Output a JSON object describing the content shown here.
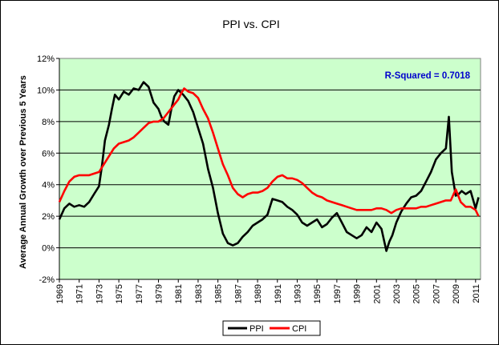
{
  "chart_data": {
    "type": "line",
    "title": "PPI vs. CPI",
    "ylabel": "Average Annual Growth over Previous 5 Years",
    "xlabel": "",
    "xlim": [
      1969,
      2011.5
    ],
    "ylim": [
      -2,
      12
    ],
    "yticks": [
      "-2%",
      "0%",
      "2%",
      "4%",
      "6%",
      "8%",
      "10%",
      "12%"
    ],
    "ytick_values": [
      -2,
      0,
      2,
      4,
      6,
      8,
      10,
      12
    ],
    "xticks": [
      "1969",
      "1971",
      "1973",
      "1975",
      "1977",
      "1979",
      "1981",
      "1983",
      "1985",
      "1987",
      "1989",
      "1991",
      "1993",
      "1995",
      "1997",
      "1999",
      "2001",
      "2003",
      "2005",
      "2007",
      "2009",
      "2011"
    ],
    "xtick_values": [
      1969,
      1971,
      1973,
      1975,
      1977,
      1979,
      1981,
      1983,
      1985,
      1987,
      1989,
      1991,
      1993,
      1995,
      1997,
      1999,
      2001,
      2003,
      2005,
      2007,
      2009,
      2011
    ],
    "annotation": "R-Squared = 0.7018",
    "grid": "horizontal",
    "legend": "bottom",
    "plot_background": "#ccffcc",
    "series": [
      {
        "name": "PPI",
        "color": "#000000",
        "x": [
          1969.0,
          1969.5,
          1970.0,
          1970.5,
          1971.0,
          1971.5,
          1972.0,
          1972.5,
          1973.0,
          1973.3,
          1973.6,
          1974.0,
          1974.3,
          1974.6,
          1975.0,
          1975.5,
          1976.0,
          1976.5,
          1977.0,
          1977.5,
          1978.0,
          1978.5,
          1979.0,
          1979.3,
          1979.6,
          1980.0,
          1980.3,
          1980.6,
          1981.0,
          1981.5,
          1982.0,
          1982.5,
          1983.0,
          1983.5,
          1984.0,
          1984.5,
          1985.0,
          1985.5,
          1986.0,
          1986.5,
          1987.0,
          1987.5,
          1988.0,
          1988.5,
          1989.0,
          1989.5,
          1990.0,
          1990.5,
          1991.0,
          1991.5,
          1992.0,
          1992.5,
          1993.0,
          1993.5,
          1994.0,
          1994.5,
          1995.0,
          1995.5,
          1996.0,
          1996.5,
          1997.0,
          1997.5,
          1998.0,
          1998.5,
          1999.0,
          1999.5,
          2000.0,
          2000.5,
          2001.0,
          2001.5,
          2002.0,
          2002.3,
          2002.6,
          2003.0,
          2003.5,
          2004.0,
          2004.5,
          2005.0,
          2005.5,
          2006.0,
          2006.5,
          2007.0,
          2007.5,
          2008.0,
          2008.3,
          2008.6,
          2009.0,
          2009.3,
          2009.6,
          2010.0,
          2010.5,
          2011.0,
          2011.3
        ],
        "values": [
          1.8,
          2.5,
          2.8,
          2.6,
          2.7,
          2.6,
          2.9,
          3.4,
          3.9,
          5.2,
          6.8,
          7.8,
          8.8,
          9.7,
          9.4,
          9.9,
          9.7,
          10.1,
          10.0,
          10.5,
          10.2,
          9.2,
          8.8,
          8.3,
          8.0,
          7.8,
          8.8,
          9.6,
          10.0,
          9.7,
          9.3,
          8.6,
          7.6,
          6.6,
          5.0,
          3.8,
          2.2,
          0.9,
          0.3,
          0.15,
          0.3,
          0.7,
          1.0,
          1.4,
          1.6,
          1.8,
          2.1,
          3.1,
          3.0,
          2.9,
          2.6,
          2.4,
          2.1,
          1.6,
          1.4,
          1.6,
          1.8,
          1.3,
          1.5,
          1.9,
          2.2,
          1.6,
          1.0,
          0.8,
          0.6,
          0.8,
          1.3,
          1.0,
          1.6,
          1.2,
          -0.2,
          0.4,
          0.8,
          1.6,
          2.3,
          2.8,
          3.2,
          3.3,
          3.6,
          4.2,
          4.8,
          5.6,
          6.0,
          6.3,
          8.3,
          4.8,
          3.3,
          3.4,
          3.6,
          3.4,
          3.6,
          2.5,
          3.2
        ]
      },
      {
        "name": "CPI",
        "color": "#ff0000",
        "x": [
          1969.0,
          1969.5,
          1970.0,
          1970.5,
          1971.0,
          1971.5,
          1972.0,
          1972.5,
          1973.0,
          1973.5,
          1974.0,
          1974.5,
          1975.0,
          1975.5,
          1976.0,
          1976.5,
          1977.0,
          1977.5,
          1978.0,
          1978.5,
          1979.0,
          1979.5,
          1980.0,
          1980.5,
          1981.0,
          1981.3,
          1981.6,
          1982.0,
          1982.5,
          1983.0,
          1983.5,
          1984.0,
          1984.5,
          1985.0,
          1985.5,
          1986.0,
          1986.5,
          1987.0,
          1987.5,
          1988.0,
          1988.5,
          1989.0,
          1989.5,
          1990.0,
          1990.5,
          1991.0,
          1991.5,
          1992.0,
          1992.5,
          1993.0,
          1993.5,
          1994.0,
          1994.5,
          1995.0,
          1995.5,
          1996.0,
          1996.5,
          1997.0,
          1997.5,
          1998.0,
          1998.5,
          1999.0,
          1999.5,
          2000.0,
          2000.5,
          2001.0,
          2001.5,
          2002.0,
          2002.5,
          2003.0,
          2003.5,
          2004.0,
          2004.5,
          2005.0,
          2005.5,
          2006.0,
          2006.5,
          2007.0,
          2007.5,
          2008.0,
          2008.5,
          2009.0,
          2009.5,
          2010.0,
          2010.5,
          2011.0,
          2011.3
        ],
        "values": [
          2.9,
          3.6,
          4.2,
          4.5,
          4.6,
          4.6,
          4.6,
          4.7,
          4.8,
          5.3,
          5.8,
          6.3,
          6.6,
          6.7,
          6.8,
          7.0,
          7.3,
          7.6,
          7.9,
          8.0,
          8.0,
          8.2,
          8.6,
          9.0,
          9.4,
          9.8,
          10.1,
          9.9,
          9.8,
          9.5,
          8.8,
          8.2,
          7.3,
          6.3,
          5.3,
          4.6,
          3.8,
          3.4,
          3.2,
          3.4,
          3.5,
          3.5,
          3.6,
          3.8,
          4.2,
          4.5,
          4.6,
          4.4,
          4.4,
          4.3,
          4.1,
          3.8,
          3.5,
          3.3,
          3.2,
          3.0,
          2.9,
          2.8,
          2.7,
          2.6,
          2.5,
          2.4,
          2.4,
          2.4,
          2.4,
          2.5,
          2.5,
          2.4,
          2.2,
          2.4,
          2.5,
          2.5,
          2.5,
          2.5,
          2.6,
          2.6,
          2.7,
          2.8,
          2.9,
          3.0,
          3.0,
          3.7,
          2.9,
          2.6,
          2.6,
          2.4,
          2.0
        ]
      }
    ]
  }
}
